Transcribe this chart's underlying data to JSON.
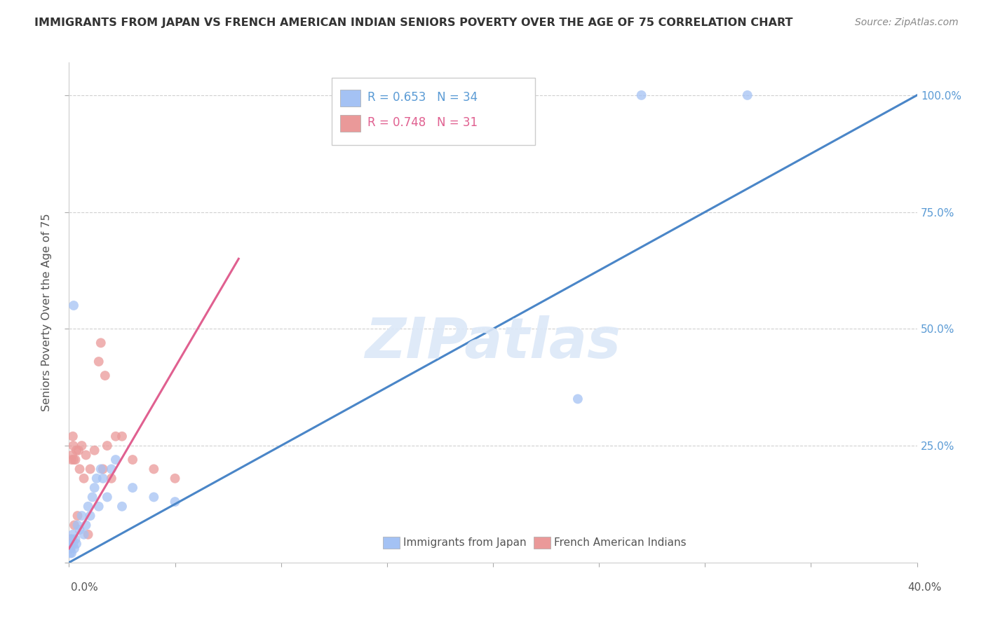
{
  "title": "IMMIGRANTS FROM JAPAN VS FRENCH AMERICAN INDIAN SENIORS POVERTY OVER THE AGE OF 75 CORRELATION CHART",
  "source": "Source: ZipAtlas.com",
  "ylabel": "Seniors Poverty Over the Age of 75",
  "legend_blue_r": "R = 0.653",
  "legend_blue_n": "N = 34",
  "legend_pink_r": "R = 0.748",
  "legend_pink_n": "N = 31",
  "blue_color": "#a4c2f4",
  "pink_color": "#ea9999",
  "blue_line_color": "#4a86c8",
  "pink_line_color": "#e06090",
  "ref_line_color": "#bbbbbb",
  "grid_color": "#d0d0d0",
  "watermark": "ZIPatlas",
  "xlim": [
    0,
    40
  ],
  "ylim": [
    0,
    100
  ],
  "blue_scatter_x": [
    0.05,
    0.08,
    0.1,
    0.12,
    0.15,
    0.18,
    0.2,
    0.25,
    0.3,
    0.35,
    0.4,
    0.5,
    0.6,
    0.7,
    0.8,
    0.9,
    1.0,
    1.1,
    1.2,
    1.4,
    1.6,
    1.8,
    2.0,
    2.5,
    3.0,
    4.0,
    5.0,
    2.2,
    1.5,
    1.3,
    24.0,
    27.0,
    32.0,
    0.22
  ],
  "blue_scatter_y": [
    2,
    3,
    4,
    2,
    5,
    6,
    4,
    3,
    5,
    4,
    8,
    7,
    10,
    6,
    8,
    12,
    10,
    14,
    16,
    12,
    18,
    14,
    20,
    12,
    16,
    14,
    13,
    22,
    20,
    18,
    35,
    100,
    100,
    55
  ],
  "pink_scatter_x": [
    0.05,
    0.08,
    0.1,
    0.12,
    0.15,
    0.18,
    0.2,
    0.25,
    0.3,
    0.35,
    0.4,
    0.5,
    0.6,
    0.7,
    0.8,
    0.9,
    1.0,
    1.2,
    1.4,
    1.6,
    1.8,
    2.0,
    2.5,
    3.0,
    4.0,
    5.0,
    1.5,
    1.7,
    2.2,
    0.22,
    0.45
  ],
  "pink_scatter_y": [
    3,
    5,
    4,
    22,
    23,
    27,
    25,
    8,
    22,
    24,
    10,
    20,
    25,
    18,
    23,
    6,
    20,
    24,
    43,
    20,
    25,
    18,
    27,
    22,
    20,
    18,
    47,
    40,
    27,
    22,
    24
  ],
  "blue_line_x": [
    0,
    40
  ],
  "blue_line_y": [
    0,
    100
  ],
  "pink_line_x": [
    0,
    8
  ],
  "pink_line_y": [
    3,
    65
  ],
  "ref_line_x": [
    0,
    40
  ],
  "ref_line_y": [
    0,
    100
  ]
}
